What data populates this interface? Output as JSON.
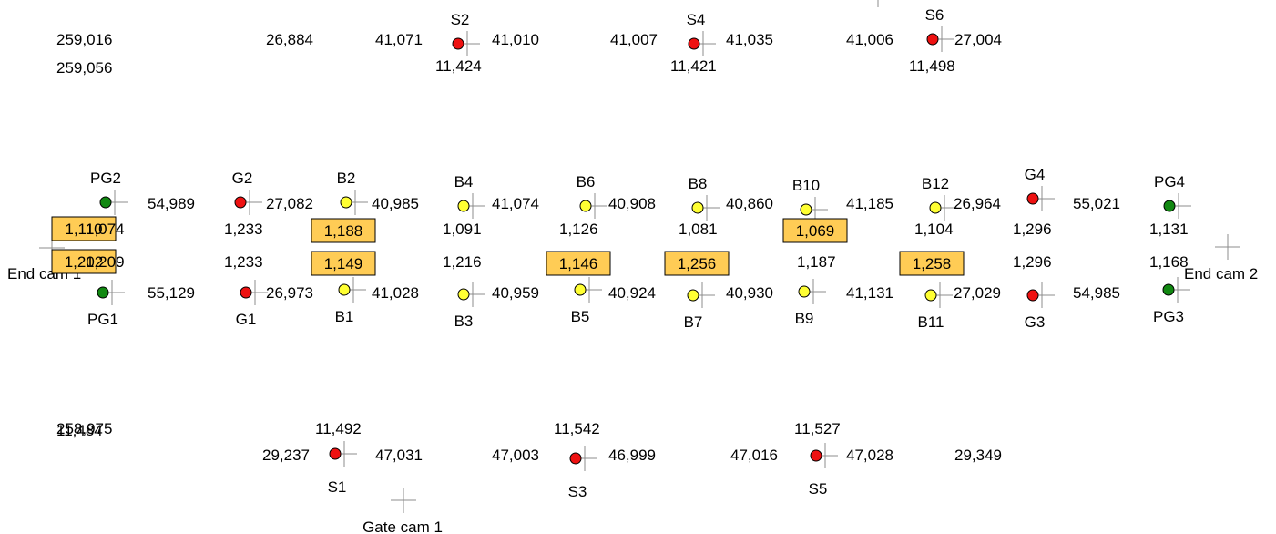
{
  "colors": {
    "S": "#ee1111",
    "G": "#ee1111",
    "B": "#ffff33",
    "PG": "#118811",
    "box": "#ffcc55",
    "cross": "#8c8c8c"
  },
  "points": {
    "S2": {
      "label": "S2",
      "type": "S"
    },
    "S4": {
      "label": "S4",
      "type": "S"
    },
    "S6": {
      "label": "S6",
      "type": "S"
    },
    "S1": {
      "label": "S1",
      "type": "S"
    },
    "S3": {
      "label": "S3",
      "type": "S"
    },
    "S5": {
      "label": "S5",
      "type": "S"
    },
    "PG2": {
      "label": "PG2",
      "type": "PG"
    },
    "PG1": {
      "label": "PG1",
      "type": "PG"
    },
    "PG4": {
      "label": "PG4",
      "type": "PG"
    },
    "PG3": {
      "label": "PG3",
      "type": "PG"
    },
    "G2": {
      "label": "G2",
      "type": "G"
    },
    "G1": {
      "label": "G1",
      "type": "G"
    },
    "G4": {
      "label": "G4",
      "type": "G"
    },
    "G3": {
      "label": "G3",
      "type": "G"
    },
    "B1": {
      "label": "B1",
      "type": "B"
    },
    "B2": {
      "label": "B2",
      "type": "B"
    },
    "B3": {
      "label": "B3",
      "type": "B"
    },
    "B4": {
      "label": "B4",
      "type": "B"
    },
    "B5": {
      "label": "B5",
      "type": "B"
    },
    "B6": {
      "label": "B6",
      "type": "B"
    },
    "B7": {
      "label": "B7",
      "type": "B"
    },
    "B8": {
      "label": "B8",
      "type": "B"
    },
    "B9": {
      "label": "B9",
      "type": "B"
    },
    "B10": {
      "label": "B10",
      "type": "B"
    },
    "B11": {
      "label": "B11",
      "type": "B"
    },
    "B12": {
      "label": "B12",
      "type": "B"
    }
  },
  "cameras": {
    "end_cam_1": "End cam 1",
    "end_cam_2": "End cam 2",
    "gate_cam_1": "Gate cam 1"
  },
  "distances": {
    "top_left_1": "259,016",
    "top_left_2": "259,056",
    "top_1": "26,884",
    "top_2": "41,071",
    "top_3": "41,010",
    "top_4": "41,007",
    "top_5": "41,035",
    "top_6": "41,006",
    "top_7": "27,004",
    "s2_down": "11,424",
    "s4_down": "11,421",
    "s6_down": "11,498",
    "up_1": "54,989",
    "up_2": "27,082",
    "up_3": "40,985",
    "up_4": "41,074",
    "up_5": "40,908",
    "up_6": "40,860",
    "up_7": "41,185",
    "up_8": "26,964",
    "up_9": "55,021",
    "low_1": "55,129",
    "low_2": "26,973",
    "low_3": "41,028",
    "low_4": "40,959",
    "low_5": "40,924",
    "low_6": "40,930",
    "low_7": "41,131",
    "low_8": "27,029",
    "low_9": "54,985",
    "bot_left_1": "258,975",
    "bot_left_2": "11,484",
    "bot_1": "29,237",
    "bot_2": "47,031",
    "bot_3": "47,003",
    "bot_4": "46,999",
    "bot_5": "47,016",
    "bot_6": "47,028",
    "bot_7": "29,349",
    "s1_up": "11,492",
    "s3_up": "11,542",
    "s5_up": "11,527"
  },
  "gaps": {
    "pg_left": "1,074",
    "pg_left_2": "1,209",
    "g_left_up": "1,233",
    "g_left_low": "1,233",
    "b4": "1,091",
    "b6": "1,126",
    "b8": "1,081",
    "b12": "1,104",
    "g_right_up": "1,296",
    "g_right_low": "1,296",
    "pg_right_up": "1,131",
    "pg_right_low": "1,168",
    "b3": "1,216",
    "b9": "1,187"
  },
  "boxes": {
    "pg_left_up": "1,110",
    "pg_left_low": "1,202",
    "b2": "1,188",
    "b1": "1,149",
    "b5": "1,146",
    "b7": "1,256",
    "b10": "1,069",
    "b11": "1,258"
  }
}
